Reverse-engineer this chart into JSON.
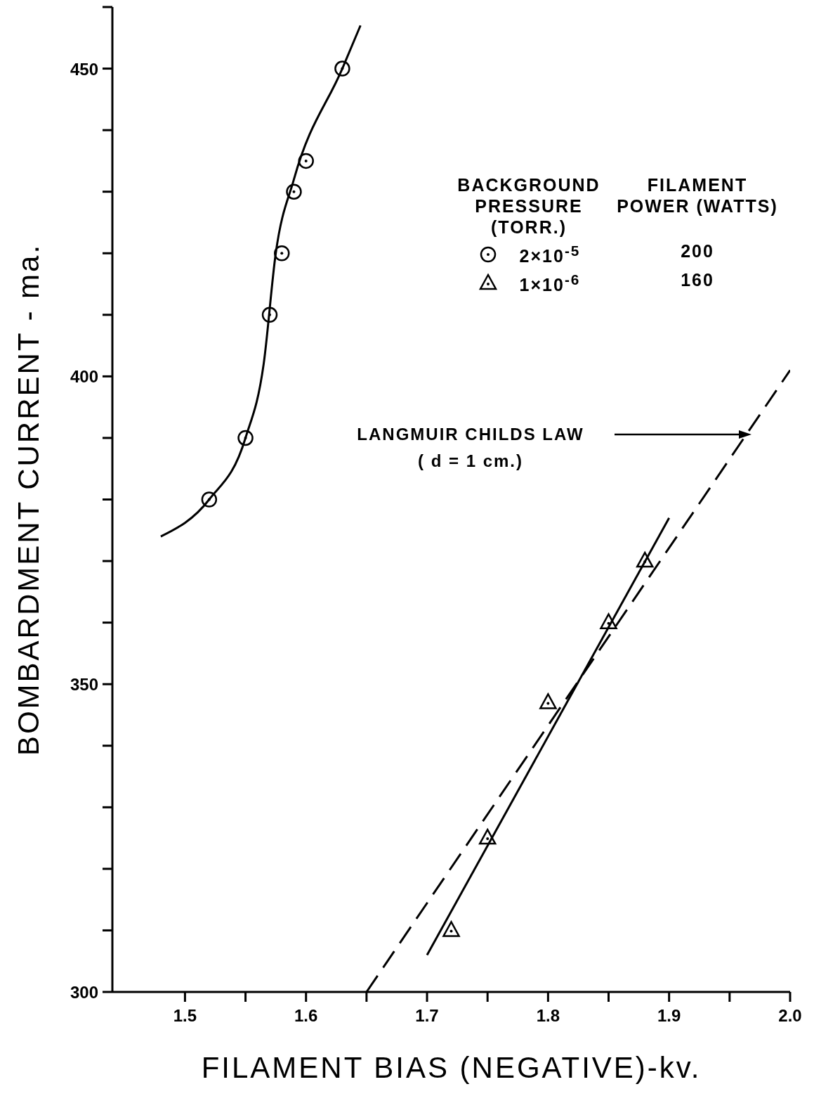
{
  "chart_data": {
    "type": "scatter",
    "xlabel": "FILAMENT BIAS (NEGATIVE)-kv.",
    "ylabel": "BOMBARDMENT CURRENT - ma.",
    "legend_title": "BACKGROUND PRESSURE (TORR.)",
    "legend": "top right",
    "grid": false,
    "xlim": [
      1.44,
      2.0
    ],
    "xticks": [
      1.5,
      {
        "value": 1.55,
        "label": null
      },
      1.6,
      {
        "value": 1.65,
        "label": null
      },
      1.7,
      {
        "value": 1.75,
        "label": null
      },
      1.8,
      {
        "value": 1.85,
        "label": null
      },
      1.9,
      {
        "value": 1.95,
        "label": null
      },
      {
        "value": 2.0,
        "label": "2.0"
      }
    ],
    "ylim": [
      300,
      460
    ],
    "yticks": [
      300,
      {
        "value": 310,
        "label": null
      },
      {
        "value": 320,
        "label": null
      },
      {
        "value": 330,
        "label": null
      },
      {
        "value": 340,
        "label": null
      },
      350,
      {
        "value": 360,
        "label": null
      },
      {
        "value": 370,
        "label": null
      },
      {
        "value": 380,
        "label": null
      },
      {
        "value": 390,
        "label": null
      },
      400,
      {
        "value": 410,
        "label": null
      },
      {
        "value": 420,
        "label": null
      },
      {
        "value": 430,
        "label": null
      },
      {
        "value": 440,
        "label": null
      },
      450,
      {
        "value": 460,
        "label": null
      }
    ],
    "series": [
      {
        "name": "2×10$^{-5}$",
        "type": "scatter",
        "marker": "circle",
        "color": "#000000",
        "x": [
          1.52,
          1.55,
          1.57,
          1.58,
          1.59,
          1.6,
          1.63
        ],
        "values": [
          380,
          390,
          410,
          420,
          430,
          435,
          450
        ]
      },
      {
        "name": "1×10$^{-6}$",
        "type": "scatter",
        "marker": "triangle",
        "color": "#000000",
        "x": [
          1.72,
          1.75,
          1.8,
          1.85,
          1.88
        ],
        "values": [
          310,
          325,
          347,
          360,
          370
        ]
      },
      {
        "type": "line",
        "line_style": "solid",
        "color": "#000000",
        "x": [
          1.48,
          1.52,
          1.55,
          1.565,
          1.575,
          1.59,
          1.63,
          1.645
        ],
        "values": [
          374,
          380,
          390,
          402,
          420,
          432,
          450,
          457
        ]
      },
      {
        "type": "line",
        "line_style": "solid",
        "color": "#000000",
        "x": [
          1.7,
          1.9
        ],
        "values": [
          306,
          377
        ]
      },
      {
        "type": "line",
        "line_style": "dashed",
        "color": "#000000",
        "x": [
          1.65,
          2.0
        ],
        "values": [
          300,
          401
        ]
      }
    ],
    "annotations": [
      "FILAMENT POWER (WATTS)",
      "200",
      "160",
      "LANGMUIR CHILDS LAW\n( d = 1 cm.)"
    ]
  }
}
